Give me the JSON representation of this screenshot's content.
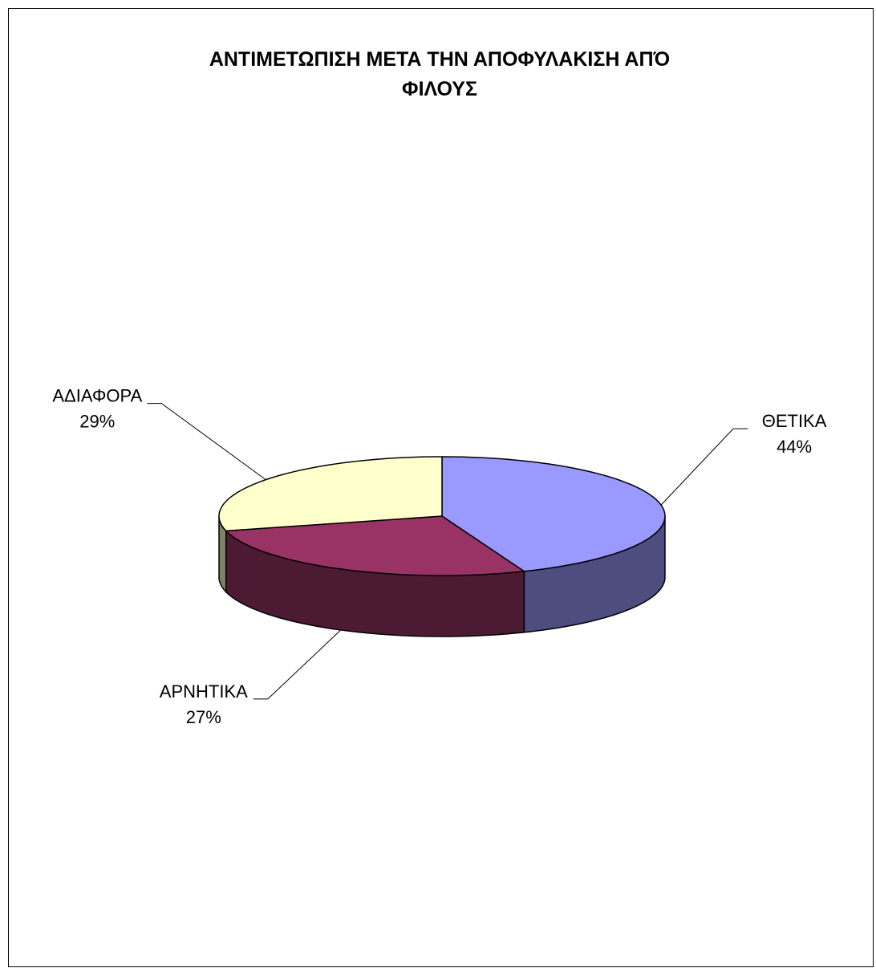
{
  "chart_data": {
    "type": "pie",
    "title": "ΑΝΤΙΜΕΤΩΠΙΣΗ ΜΕΤΑ ΤΗΝ ΑΠΟΦΥΛΑΚΙΣΗ ΑΠΌ ΦΙΛΟΥΣ",
    "title_lines": [
      "ΑΝΤΙΜΕΤΩΠΙΣΗ ΜΕΤΑ ΤΗΝ ΑΠΟΦΥΛΑΚΙΣΗ ΑΠΌ",
      "ΦΙΛΟΥΣ"
    ],
    "three_d": true,
    "slices": [
      {
        "label": "ΘΕΤΙΚΑ",
        "value": 44,
        "value_label": "44%",
        "color": "#9999FF",
        "side_color": "#4D4D80"
      },
      {
        "label": "ΑΡΝΗΤΙΚΑ",
        "value": 27,
        "value_label": "27%",
        "color": "#993366",
        "side_color": "#4D1A33"
      },
      {
        "label": "ΑΔΙΑΦΟΡΑ",
        "value": 29,
        "value_label": "29%",
        "color": "#FFFFCC",
        "side_color": "#808066"
      }
    ],
    "legend": "none"
  }
}
